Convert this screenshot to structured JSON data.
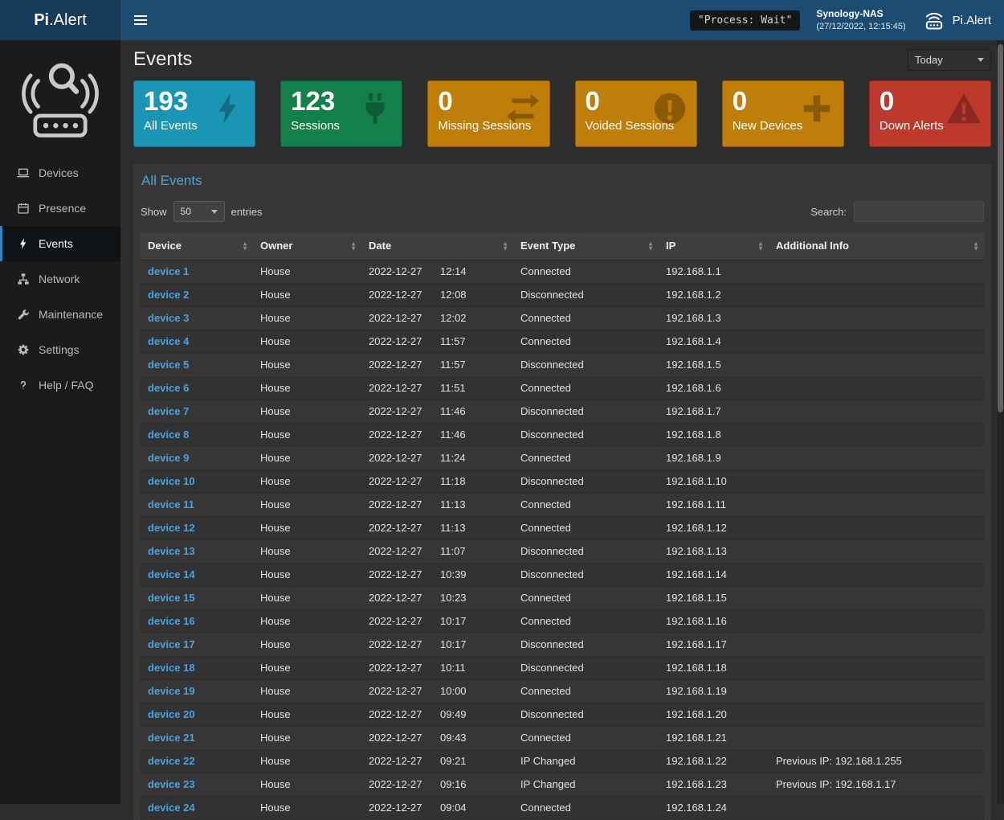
{
  "theme": {
    "header_bg": "#1d4c73",
    "logo_bg": "#163a58",
    "sidebar_bg": "#1b1b1b",
    "content_bg": "#2d2d2d",
    "panel_bg": "#373737",
    "link_color": "#4aa3df"
  },
  "header": {
    "logo_primary": "Pi",
    "logo_secondary": ".Alert",
    "process_status": "\"Process: Wait\"",
    "device_name": "Synology-NAS",
    "timestamp": "(27/12/2022, 12:15:45)",
    "brand": "Pi.Alert"
  },
  "sidebar": {
    "items": [
      {
        "label": "Devices",
        "icon": "laptop-icon",
        "active": false
      },
      {
        "label": "Presence",
        "icon": "calendar-icon",
        "active": false
      },
      {
        "label": "Events",
        "icon": "bolt-icon",
        "active": true
      },
      {
        "label": "Network",
        "icon": "network-icon",
        "active": false
      },
      {
        "label": "Maintenance",
        "icon": "wrench-icon",
        "active": false
      },
      {
        "label": "Settings",
        "icon": "gear-icon",
        "active": false
      },
      {
        "label": "Help / FAQ",
        "icon": "question-icon",
        "active": false
      }
    ]
  },
  "page": {
    "title": "Events",
    "period": "Today"
  },
  "cards": [
    {
      "value": "193",
      "label": "All Events",
      "color": "#1a96b4",
      "icon": "bolt-icon"
    },
    {
      "value": "123",
      "label": "Sessions",
      "color": "#13804b",
      "icon": "plug-icon"
    },
    {
      "value": "0",
      "label": "Missing Sessions",
      "color": "#bf7d0a",
      "icon": "exchange-icon"
    },
    {
      "value": "0",
      "label": "Voided Sessions",
      "color": "#bf7d0a",
      "icon": "exclamation-circle-icon"
    },
    {
      "value": "0",
      "label": "New Devices",
      "color": "#bf7d0a",
      "icon": "plus-icon"
    },
    {
      "value": "0",
      "label": "Down Alerts",
      "color": "#bc392b",
      "icon": "warning-triangle-icon"
    }
  ],
  "panel": {
    "title": "All Events",
    "show_label": "Show",
    "page_length": "50",
    "entries_label": "entries",
    "search_label": "Search:",
    "search_value": ""
  },
  "table": {
    "columns": [
      "Device",
      "Owner",
      "Date",
      "Event Type",
      "IP",
      "Additional Info"
    ],
    "rows": [
      {
        "device": "device 1",
        "owner": "House",
        "date": "2022-12-27",
        "time": "12:14",
        "event": "Connected",
        "ip": "192.168.1.1",
        "info": ""
      },
      {
        "device": "device 2",
        "owner": "House",
        "date": "2022-12-27",
        "time": "12:08",
        "event": "Disconnected",
        "ip": "192.168.1.2",
        "info": ""
      },
      {
        "device": "device 3",
        "owner": "House",
        "date": "2022-12-27",
        "time": "12:02",
        "event": "Connected",
        "ip": "192.168.1.3",
        "info": ""
      },
      {
        "device": "device 4",
        "owner": "House",
        "date": "2022-12-27",
        "time": "11:57",
        "event": "Connected",
        "ip": "192.168.1.4",
        "info": ""
      },
      {
        "device": "device 5",
        "owner": "House",
        "date": "2022-12-27",
        "time": "11:57",
        "event": "Disconnected",
        "ip": "192.168.1.5",
        "info": ""
      },
      {
        "device": "device 6",
        "owner": "House",
        "date": "2022-12-27",
        "time": "11:51",
        "event": "Connected",
        "ip": "192.168.1.6",
        "info": ""
      },
      {
        "device": "device 7",
        "owner": "House",
        "date": "2022-12-27",
        "time": "11:46",
        "event": "Disconnected",
        "ip": "192.168.1.7",
        "info": ""
      },
      {
        "device": "device 8",
        "owner": "House",
        "date": "2022-12-27",
        "time": "11:46",
        "event": "Disconnected",
        "ip": "192.168.1.8",
        "info": ""
      },
      {
        "device": "device 9",
        "owner": "House",
        "date": "2022-12-27",
        "time": "11:24",
        "event": "Connected",
        "ip": "192.168.1.9",
        "info": ""
      },
      {
        "device": "device 10",
        "owner": "House",
        "date": "2022-12-27",
        "time": "11:18",
        "event": "Disconnected",
        "ip": "192.168.1.10",
        "info": ""
      },
      {
        "device": "device 11",
        "owner": "House",
        "date": "2022-12-27",
        "time": "11:13",
        "event": "Connected",
        "ip": "192.168.1.11",
        "info": ""
      },
      {
        "device": "device 12",
        "owner": "House",
        "date": "2022-12-27",
        "time": "11:13",
        "event": "Connected",
        "ip": "192.168.1.12",
        "info": ""
      },
      {
        "device": "device 13",
        "owner": "House",
        "date": "2022-12-27",
        "time": "11:07",
        "event": "Disconnected",
        "ip": "192.168.1.13",
        "info": ""
      },
      {
        "device": "device 14",
        "owner": "House",
        "date": "2022-12-27",
        "time": "10:39",
        "event": "Disconnected",
        "ip": "192.168.1.14",
        "info": ""
      },
      {
        "device": "device 15",
        "owner": "House",
        "date": "2022-12-27",
        "time": "10:23",
        "event": "Connected",
        "ip": "192.168.1.15",
        "info": ""
      },
      {
        "device": "device 16",
        "owner": "House",
        "date": "2022-12-27",
        "time": "10:17",
        "event": "Connected",
        "ip": "192.168.1.16",
        "info": ""
      },
      {
        "device": "device 17",
        "owner": "House",
        "date": "2022-12-27",
        "time": "10:17",
        "event": "Disconnected",
        "ip": "192.168.1.17",
        "info": ""
      },
      {
        "device": "device 18",
        "owner": "House",
        "date": "2022-12-27",
        "time": "10:11",
        "event": "Disconnected",
        "ip": "192.168.1.18",
        "info": ""
      },
      {
        "device": "device 19",
        "owner": "House",
        "date": "2022-12-27",
        "time": "10:00",
        "event": "Connected",
        "ip": "192.168.1.19",
        "info": ""
      },
      {
        "device": "device 20",
        "owner": "House",
        "date": "2022-12-27",
        "time": "09:49",
        "event": "Disconnected",
        "ip": "192.168.1.20",
        "info": ""
      },
      {
        "device": "device 21",
        "owner": "House",
        "date": "2022-12-27",
        "time": "09:43",
        "event": "Connected",
        "ip": "192.168.1.21",
        "info": ""
      },
      {
        "device": "device 22",
        "owner": "House",
        "date": "2022-12-27",
        "time": "09:21",
        "event": "IP Changed",
        "ip": "192.168.1.22",
        "info": "Previous IP: 192.168.1.255"
      },
      {
        "device": "device 23",
        "owner": "House",
        "date": "2022-12-27",
        "time": "09:16",
        "event": "IP Changed",
        "ip": "192.168.1.23",
        "info": "Previous IP: 192.168.1.17"
      },
      {
        "device": "device 24",
        "owner": "House",
        "date": "2022-12-27",
        "time": "09:04",
        "event": "Connected",
        "ip": "192.168.1.24",
        "info": ""
      }
    ]
  }
}
